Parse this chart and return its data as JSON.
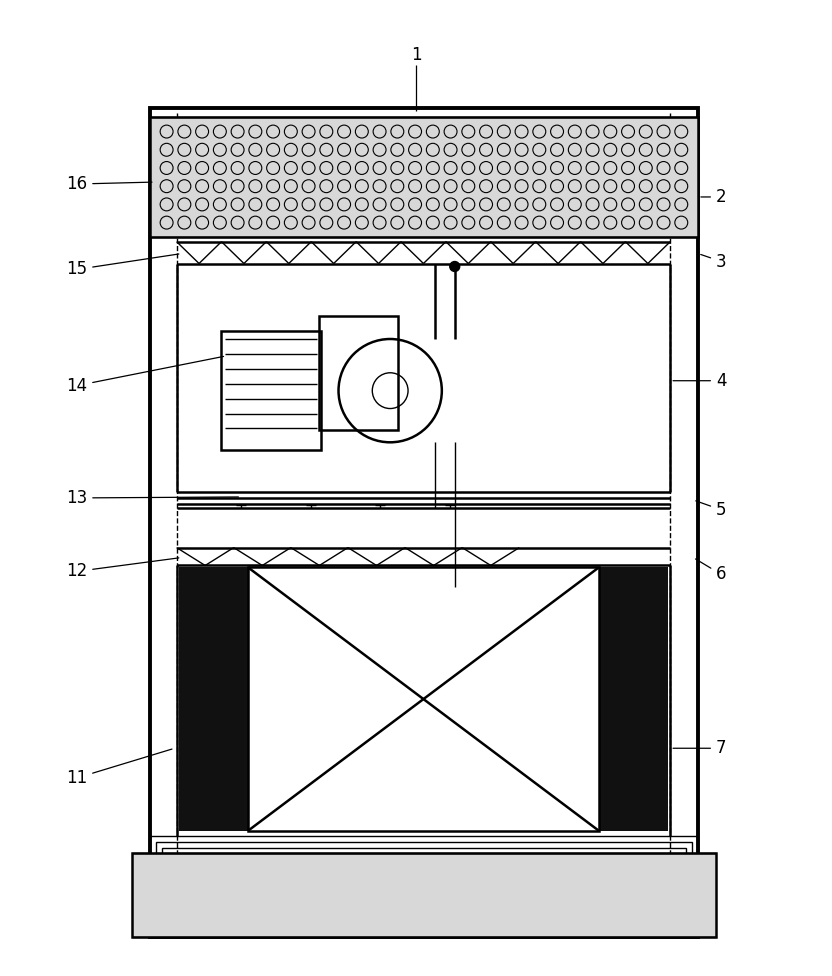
{
  "bg_color": "#ffffff",
  "line_color": "#000000",
  "label_color": "#000000",
  "fig_width": 8.32,
  "fig_height": 9.76,
  "dpi": 100
}
